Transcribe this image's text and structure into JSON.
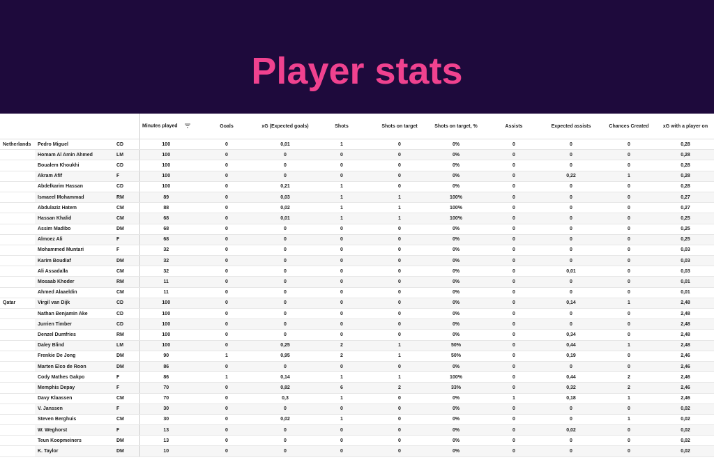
{
  "header": {
    "title": "Player stats"
  },
  "table": {
    "columns": [
      "Minutes played",
      "Goals",
      "xG (Expected goals)",
      "Shots",
      "Shots on target",
      "Shots on target, %",
      "Assists",
      "Expected assists",
      "Chances Created",
      "xG with a player on"
    ],
    "groups": [
      {
        "team": "Netherlands",
        "rows": [
          [
            "Pedro Miguel",
            "CD",
            "100",
            "0",
            "0,01",
            "1",
            "0",
            "0%",
            "0",
            "0",
            "0",
            "0,28"
          ],
          [
            "Homam Al Amin Ahmed",
            "LM",
            "100",
            "0",
            "0",
            "0",
            "0",
            "0%",
            "0",
            "0",
            "0",
            "0,28"
          ],
          [
            "Boualem Khoukhi",
            "CD",
            "100",
            "0",
            "0",
            "0",
            "0",
            "0%",
            "0",
            "0",
            "0",
            "0,28"
          ],
          [
            "Akram Afif",
            "F",
            "100",
            "0",
            "0",
            "0",
            "0",
            "0%",
            "0",
            "0,22",
            "1",
            "0,28"
          ],
          [
            "Abdelkarim Hassan",
            "CD",
            "100",
            "0",
            "0,21",
            "1",
            "0",
            "0%",
            "0",
            "0",
            "0",
            "0,28"
          ],
          [
            "Ismaeel Mohammad",
            "RM",
            "89",
            "0",
            "0,03",
            "1",
            "1",
            "100%",
            "0",
            "0",
            "0",
            "0,27"
          ],
          [
            "Abdulaziz Hatem",
            "CM",
            "88",
            "0",
            "0,02",
            "1",
            "1",
            "100%",
            "0",
            "0",
            "0",
            "0,27"
          ],
          [
            "Hassan Khalid",
            "CM",
            "68",
            "0",
            "0,01",
            "1",
            "1",
            "100%",
            "0",
            "0",
            "0",
            "0,25"
          ],
          [
            "Assim Madibo",
            "DM",
            "68",
            "0",
            "0",
            "0",
            "0",
            "0%",
            "0",
            "0",
            "0",
            "0,25"
          ],
          [
            "Almoez Ali",
            "F",
            "68",
            "0",
            "0",
            "0",
            "0",
            "0%",
            "0",
            "0",
            "0",
            "0,25"
          ],
          [
            "Mohammed Muntari",
            "F",
            "32",
            "0",
            "0",
            "0",
            "0",
            "0%",
            "0",
            "0",
            "0",
            "0,03"
          ],
          [
            "Karim Boudiaf",
            "DM",
            "32",
            "0",
            "0",
            "0",
            "0",
            "0%",
            "0",
            "0",
            "0",
            "0,03"
          ],
          [
            "Ali Assadalla",
            "CM",
            "32",
            "0",
            "0",
            "0",
            "0",
            "0%",
            "0",
            "0,01",
            "0",
            "0,03"
          ],
          [
            "Mosaab Khoder",
            "RM",
            "11",
            "0",
            "0",
            "0",
            "0",
            "0%",
            "0",
            "0",
            "0",
            "0,01"
          ],
          [
            "Ahmed Alaaeldin",
            "CM",
            "11",
            "0",
            "0",
            "0",
            "0",
            "0%",
            "0",
            "0",
            "0",
            "0,01"
          ]
        ]
      },
      {
        "team": "Qatar",
        "rows": [
          [
            "Virgil van Dijk",
            "CD",
            "100",
            "0",
            "0",
            "0",
            "0",
            "0%",
            "0",
            "0,14",
            "1",
            "2,48"
          ],
          [
            "Nathan Benjamin Ake",
            "CD",
            "100",
            "0",
            "0",
            "0",
            "0",
            "0%",
            "0",
            "0",
            "0",
            "2,48"
          ],
          [
            "Jurrien Timber",
            "CD",
            "100",
            "0",
            "0",
            "0",
            "0",
            "0%",
            "0",
            "0",
            "0",
            "2,48"
          ],
          [
            "Denzel Dumfries",
            "RM",
            "100",
            "0",
            "0",
            "0",
            "0",
            "0%",
            "0",
            "0,34",
            "0",
            "2,48"
          ],
          [
            "Daley Blind",
            "LM",
            "100",
            "0",
            "0,25",
            "2",
            "1",
            "50%",
            "0",
            "0,44",
            "1",
            "2,48"
          ],
          [
            "Frenkie De Jong",
            "DM",
            "90",
            "1",
            "0,95",
            "2",
            "1",
            "50%",
            "0",
            "0,19",
            "0",
            "2,46"
          ],
          [
            "Marten Elco de Roon",
            "DM",
            "86",
            "0",
            "0",
            "0",
            "0",
            "0%",
            "0",
            "0",
            "0",
            "2,46"
          ],
          [
            "Cody Mathes Gakpo",
            "F",
            "86",
            "1",
            "0,14",
            "1",
            "1",
            "100%",
            "0",
            "0,44",
            "2",
            "2,46"
          ],
          [
            "Memphis Depay",
            "F",
            "70",
            "0",
            "0,82",
            "6",
            "2",
            "33%",
            "0",
            "0,32",
            "2",
            "2,46"
          ],
          [
            "Davy Klaassen",
            "CM",
            "70",
            "0",
            "0,3",
            "1",
            "0",
            "0%",
            "1",
            "0,18",
            "1",
            "2,46"
          ],
          [
            "V. Janssen",
            "F",
            "30",
            "0",
            "0",
            "0",
            "0",
            "0%",
            "0",
            "0",
            "0",
            "0,02"
          ],
          [
            "Steven Berghuis",
            "CM",
            "30",
            "0",
            "0,02",
            "1",
            "0",
            "0%",
            "0",
            "0",
            "1",
            "0,02"
          ],
          [
            "W. Weghorst",
            "F",
            "13",
            "0",
            "0",
            "0",
            "0",
            "0%",
            "0",
            "0,02",
            "0",
            "0,02"
          ],
          [
            "Teun Koopmeiners",
            "DM",
            "13",
            "0",
            "0",
            "0",
            "0",
            "0%",
            "0",
            "0",
            "0",
            "0,02"
          ],
          [
            "K. Taylor",
            "DM",
            "10",
            "0",
            "0",
            "0",
            "0",
            "0%",
            "0",
            "0",
            "0",
            "0,02"
          ]
        ]
      }
    ]
  }
}
